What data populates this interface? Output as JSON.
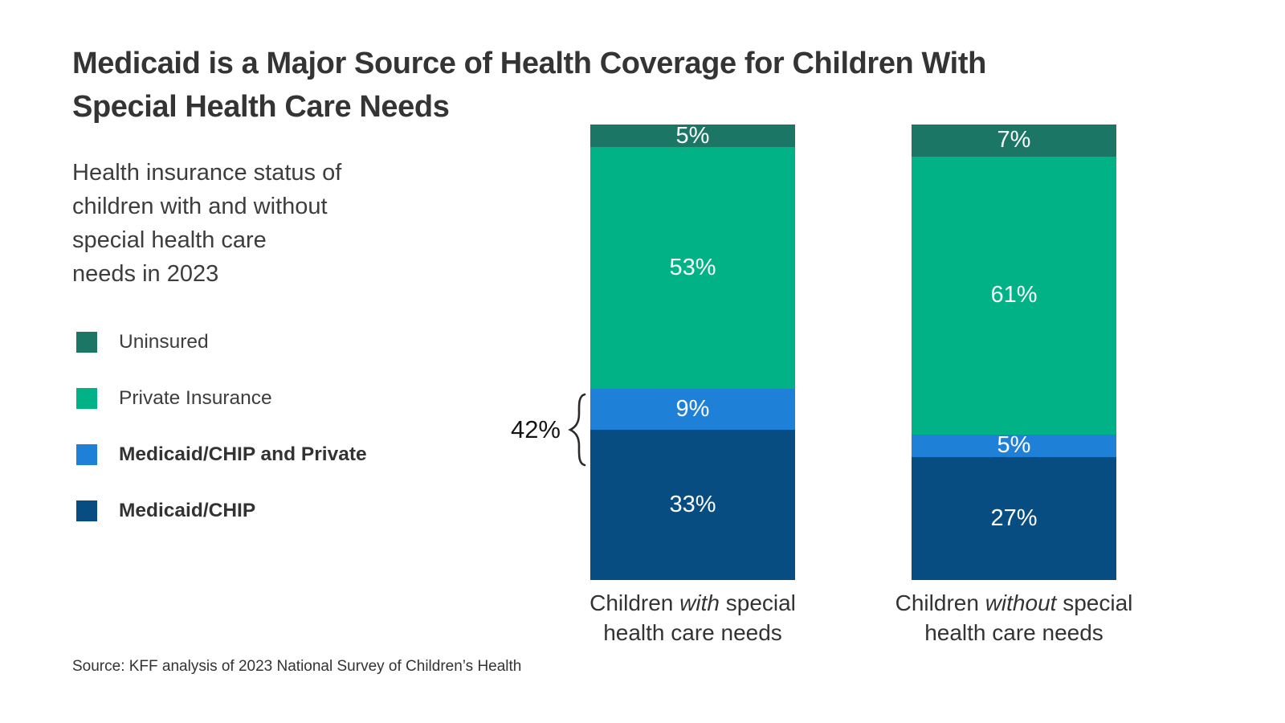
{
  "page": {
    "title_lines": [
      "Medicaid is a Major Source of Health Coverage for Children With",
      "Special Health Care Needs"
    ],
    "subtitle_lines": [
      "Health insurance status of",
      "children with and without",
      "special health care",
      "needs in 2023"
    ],
    "source": "Source: KFF analysis of 2023 National Survey of Children’s Health"
  },
  "legend": {
    "items": [
      {
        "label": "Uninsured",
        "color": "#1B7666",
        "bold": false
      },
      {
        "label": "Private Insurance",
        "color": "#00B286",
        "bold": false
      },
      {
        "label": "Medicaid/CHIP and Private",
        "color": "#1F80D8",
        "bold": true
      },
      {
        "label": "Medicaid/CHIP",
        "color": "#084D82",
        "bold": true
      }
    ]
  },
  "chart_data": {
    "type": "bar",
    "stacked": true,
    "title": "Medicaid is a Major Source of Health Coverage for Children With Special Health Care Needs",
    "subtitle": "Health insurance status of children with and without special health care needs in 2023",
    "categories": [
      "Children *with* special\nhealth care needs",
      "Children *without* special\nhealth care needs"
    ],
    "stack_order": "top-to-bottom",
    "series": [
      {
        "name": "Uninsured",
        "color": "#1B7666",
        "values": [
          5,
          7
        ]
      },
      {
        "name": "Private Insurance",
        "color": "#00B286",
        "values": [
          53,
          61
        ]
      },
      {
        "name": "Medicaid/CHIP and Private",
        "color": "#1F80D8",
        "values": [
          9,
          5
        ]
      },
      {
        "name": "Medicaid/CHIP",
        "color": "#084D82",
        "values": [
          33,
          27
        ]
      }
    ],
    "value_suffix": "%",
    "ylim": [
      0,
      100
    ],
    "grid": false,
    "axis_ticks_visible": false,
    "legend_position": "left",
    "annotation": {
      "text": "42%",
      "category_index": 0,
      "combines": [
        "Medicaid/CHIP",
        "Medicaid/CHIP and Private"
      ],
      "sum_of": [
        33,
        9
      ]
    }
  }
}
